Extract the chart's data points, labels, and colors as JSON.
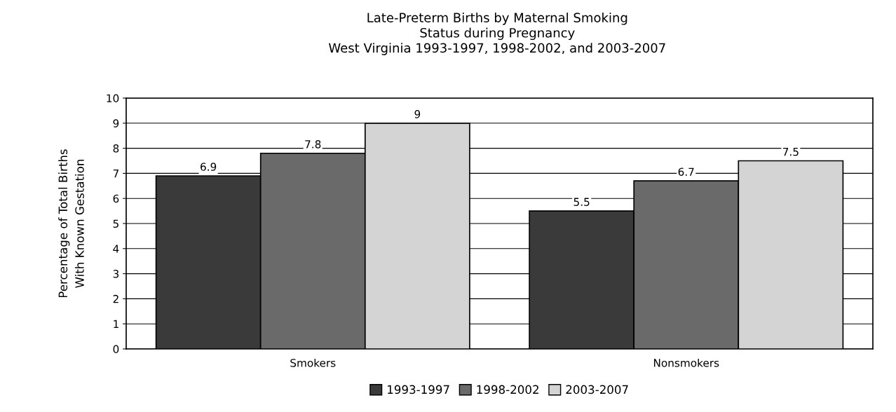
{
  "chart_data": {
    "type": "bar",
    "title": "Late-Preterm Births by Maternal Smoking\nStatus during Pregnancy\nWest Virginia 1993-1997, 1998-2002, and 2003-2007",
    "ylabel": "Percentage of Total Births\nWith Known Gestation",
    "categories": [
      "Smokers",
      "Nonsmokers"
    ],
    "series": [
      {
        "name": "1993-1997",
        "color": "#3a3a3a",
        "values": [
          6.9,
          5.5
        ]
      },
      {
        "name": "1998-2002",
        "color": "#6a6a6a",
        "values": [
          7.8,
          6.7
        ]
      },
      {
        "name": "2003-2007",
        "color": "#d4d4d4",
        "values": [
          9,
          7.5
        ]
      }
    ],
    "ylim": [
      0,
      10
    ],
    "yticks": [
      0,
      1,
      2,
      3,
      4,
      5,
      6,
      7,
      8,
      9,
      10
    ],
    "grid": "y",
    "legend": "bottom",
    "data_labels": true
  }
}
